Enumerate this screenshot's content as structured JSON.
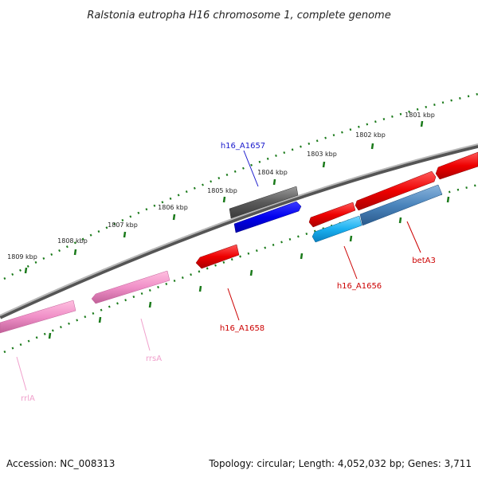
{
  "title": "Ralstonia eutropha H16 chromosome 1, complete genome",
  "footer": {
    "accession": "Accession: NC_008313",
    "topology": "Topology: circular; Length: 4,052,032 bp; Genes: 3,711"
  },
  "colors": {
    "backbone": "#8a8a8a",
    "tick": "#1a7a1a",
    "blue_label": "#1a1acc",
    "red_label": "#cc0000",
    "pink_label": "#e890c0"
  },
  "scale_labels": [
    "1801 kbp",
    "1802 kbp",
    "1803 kbp",
    "1804 kbp",
    "1805 kbp",
    "1806 kbp",
    "1807 kbp",
    "1808 kbp",
    "1809 kbp"
  ],
  "gene_labels": {
    "h16_A1657": "h16_A1657",
    "h16_A1656": "h16_A1656",
    "betA3": "betA3",
    "h16_A1658": "h16_A1658",
    "rrsA": "rrsA",
    "rrlA": "rrlA"
  }
}
